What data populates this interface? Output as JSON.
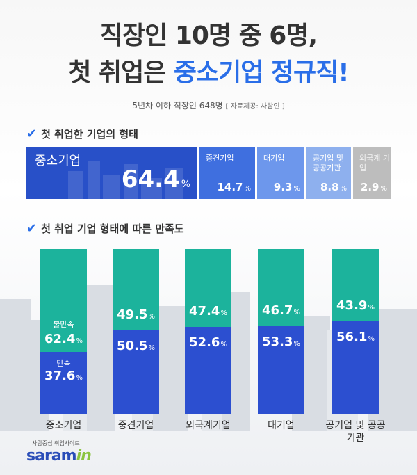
{
  "title": {
    "line1": "직장인 10명 중 6명,",
    "line2_prefix": "첫 취업은 ",
    "line2_highlight": "중소기업 정규직!"
  },
  "subtitle": {
    "text": "5년차 이하 직장인 648명",
    "source": "[ 자료제공: 사람인 ]"
  },
  "colors": {
    "highlight": "#2a6ee8",
    "satisfied": "#2c4fd0",
    "dissatisfied": "#1cb39c",
    "seg1": "#2850c8",
    "seg2": "#3f6fdf",
    "seg3": "#6d97ec",
    "seg4": "#8eb0ee",
    "seg5": "#bdbdbd"
  },
  "chart_data": [
    {
      "type": "bar",
      "title": "첫 취업한 기업의 형태",
      "stacked": true,
      "orientation": "horizontal",
      "segments": [
        {
          "label": "중소기업",
          "value": 64.4,
          "display": "64.4",
          "unit": "%"
        },
        {
          "label": "중견기업",
          "value": 14.7,
          "display": "14.7",
          "unit": "%"
        },
        {
          "label": "대기업",
          "value": 9.3,
          "display": "9.3",
          "unit": "%"
        },
        {
          "label": "공기업 및 공공기관",
          "value": 8.8,
          "display": "8.8",
          "unit": "%"
        },
        {
          "label": "외국계 기업",
          "value": 2.9,
          "display": "2.9",
          "unit": "%"
        }
      ]
    },
    {
      "type": "bar",
      "title": "첫 취업 기업 형태에 따른 만족도",
      "stacked": true,
      "categories": [
        "중소기업",
        "중견기업",
        "외국계기업",
        "대기업",
        "공기업 및 공공기관"
      ],
      "series": [
        {
          "name": "불만족",
          "values": [
            62.4,
            49.5,
            47.4,
            46.7,
            43.9
          ],
          "display": [
            "62.4",
            "49.5",
            "47.4",
            "46.7",
            "43.9"
          ]
        },
        {
          "name": "만족",
          "values": [
            37.6,
            50.5,
            52.6,
            53.3,
            56.1
          ],
          "display": [
            "37.6",
            "50.5",
            "52.6",
            "53.3",
            "56.1"
          ]
        }
      ],
      "unit": "%"
    }
  ],
  "logo": {
    "small": "사람중심 취업사이트",
    "main_prefix": "saram",
    "main_suffix": "in"
  }
}
